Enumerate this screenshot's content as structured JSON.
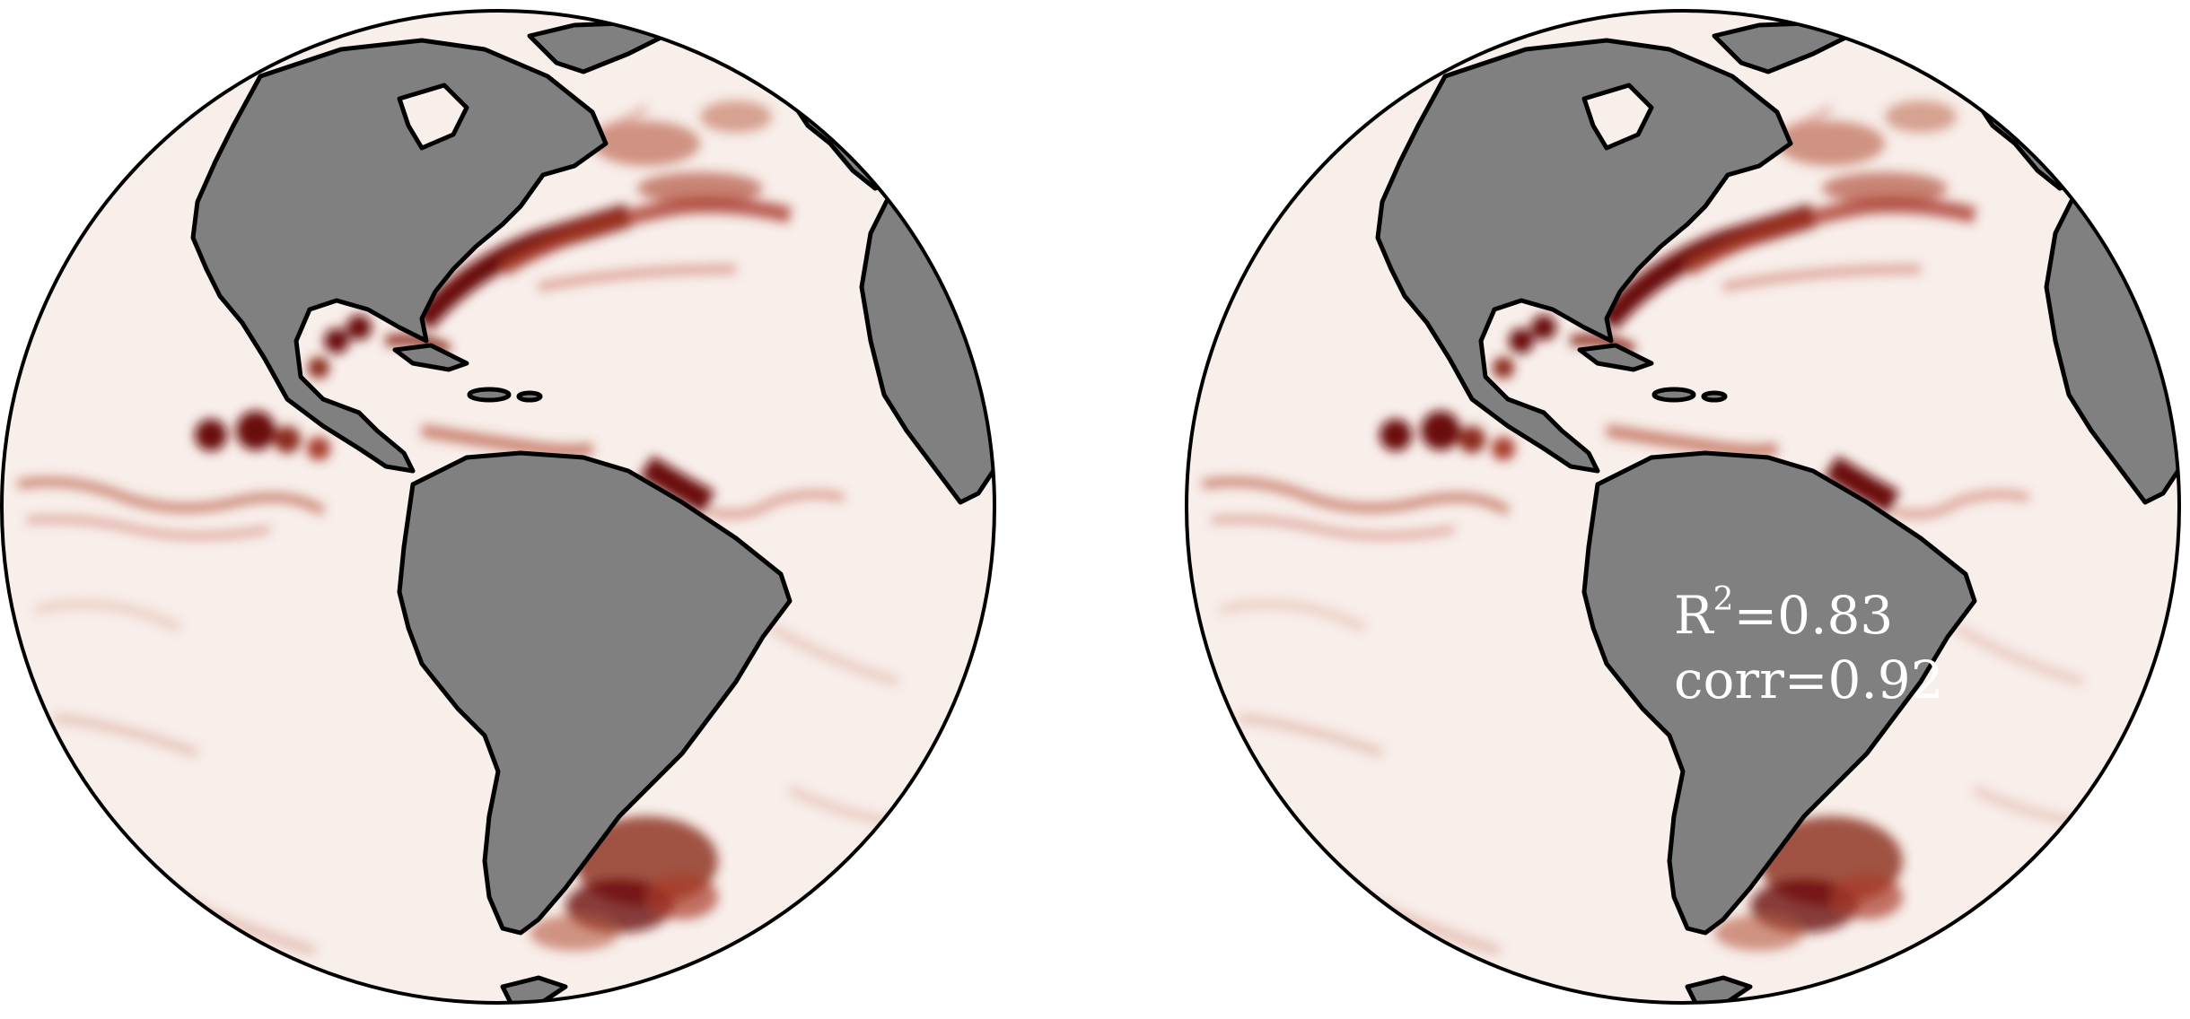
{
  "figure": {
    "colors": {
      "ocean_background": "#f8eeea",
      "land": "#808080",
      "coastline": "#000000",
      "anomaly_light": "#e3b7a8",
      "anomaly_mid": "#b5553a",
      "anomaly_strong": "#6a0d0d",
      "annotation_text": "#ffffff"
    },
    "panels": [
      {
        "name": "left-globe",
        "annotation": null
      },
      {
        "name": "right-globe",
        "annotation": {
          "r2_symbol": "R",
          "r2_exponent": "2",
          "r2_value": "=0.83",
          "corr_text": "corr=0.92"
        }
      }
    ]
  }
}
